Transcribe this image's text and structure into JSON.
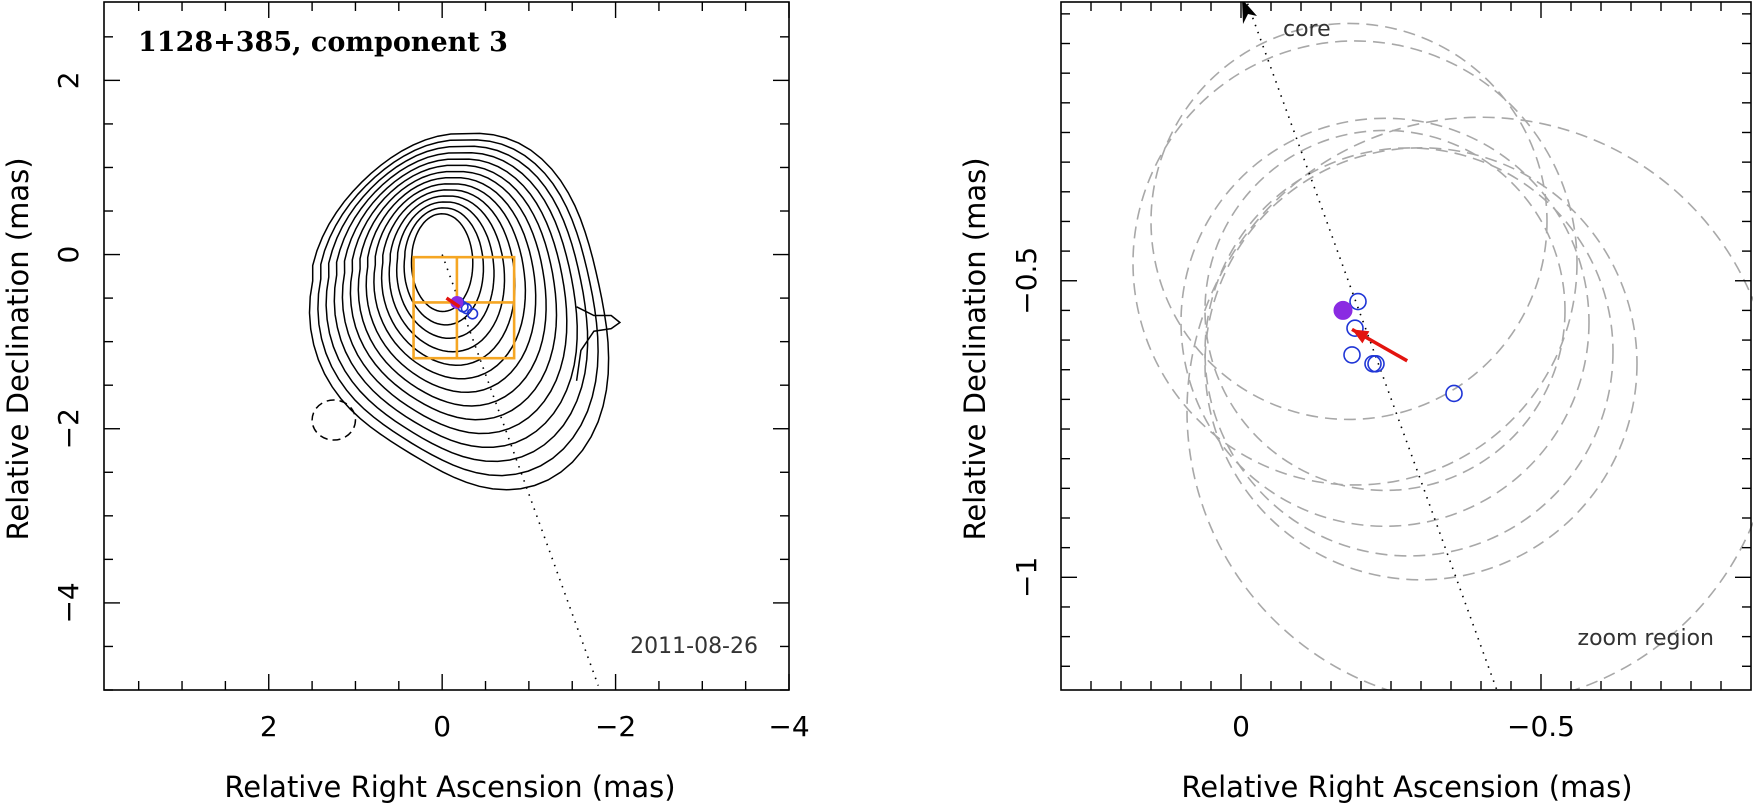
{
  "chart_data": [
    {
      "type": "contour",
      "title": "1128+385, component 3",
      "annotation": "2011-08-26",
      "xlabel": "Relative Right Ascension (mas)",
      "ylabel": "Relative Declination (mas)",
      "xlim": [
        3.9,
        -4.0
      ],
      "ylim": [
        -5.0,
        2.9
      ],
      "xticks": [
        2,
        0,
        -2,
        -4
      ],
      "yticks": [
        2,
        0,
        -2,
        -4
      ],
      "xtick_labels": [
        "2",
        "0",
        "−2",
        "−4"
      ],
      "ytick_labels": [
        "2",
        "0",
        "−2",
        "−4"
      ],
      "contour_levels": 14,
      "beam_center": [
        1.25,
        -1.9
      ],
      "core_direction_line": {
        "from": [
          0.0,
          0.0
        ],
        "to": [
          -1.8,
          -4.95
        ]
      },
      "zoom_box": {
        "x": [
          0.33,
          -0.83
        ],
        "y": [
          -0.03,
          -1.19
        ]
      },
      "zoom_box_inner": {
        "x": [
          0.33,
          -0.83,
          -0.17
        ],
        "y": [
          -0.03,
          -1.19,
          -0.55
        ]
      },
      "component_epochs": [
        [
          -0.19,
          -0.55
        ],
        [
          -0.24,
          -0.6
        ],
        [
          -0.28,
          -0.62
        ],
        [
          -0.35,
          -0.68
        ]
      ],
      "mean_position": [
        -0.17,
        -0.55
      ],
      "velocity_vector": {
        "from": [
          -0.2,
          -0.6
        ],
        "to": [
          -0.05,
          -0.5
        ]
      }
    },
    {
      "type": "scatter",
      "xlabel": "Relative Right Ascension (mas)",
      "ylabel": "Relative Declination (mas)",
      "xlim": [
        0.3,
        -0.85
      ],
      "ylim": [
        -1.19,
        -0.03
      ],
      "xticks": [
        0,
        -0.5
      ],
      "yticks": [
        -0.5,
        -1
      ],
      "xtick_labels": [
        "0",
        "−0.5"
      ],
      "ytick_labels": [
        "−0.5",
        "−1"
      ],
      "core_label": "core",
      "zoom_label": "zoom region",
      "core_direction_line": {
        "from": [
          -0.43,
          -1.2
        ],
        "to": [
          -0.01,
          -0.03
        ]
      },
      "mean_position": {
        "x": -0.17,
        "y": -0.55,
        "filled": true
      },
      "component_epochs": [
        {
          "x": -0.195,
          "y": -0.535
        },
        {
          "x": -0.185,
          "y": -0.625
        },
        {
          "x": -0.22,
          "y": -0.64
        },
        {
          "x": -0.225,
          "y": -0.64
        },
        {
          "x": -0.355,
          "y": -0.69
        },
        {
          "x": -0.19,
          "y": -0.58
        }
      ],
      "error_circles": [
        {
          "x": -0.18,
          "y": -0.4,
          "r": 0.33
        },
        {
          "x": -0.19,
          "y": -0.47,
          "r": 0.37
        },
        {
          "x": -0.24,
          "y": -0.55,
          "r": 0.3
        },
        {
          "x": -0.24,
          "y": -0.57,
          "r": 0.34
        },
        {
          "x": -0.28,
          "y": -0.62,
          "r": 0.34
        },
        {
          "x": -0.3,
          "y": -0.64,
          "r": 0.36
        },
        {
          "x": -0.4,
          "y": -0.72,
          "r": 0.49
        }
      ],
      "velocity_vector": {
        "from": [
          -0.277,
          -0.635
        ],
        "to": [
          -0.185,
          -0.582
        ]
      }
    }
  ]
}
